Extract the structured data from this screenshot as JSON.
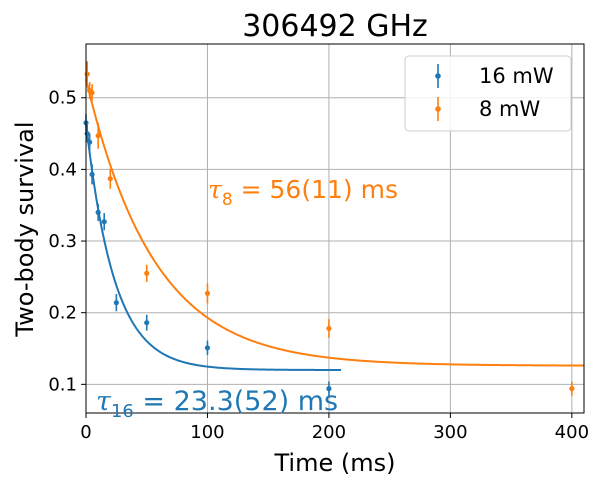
{
  "chart_data": {
    "type": "scatter",
    "title": "306492 GHz",
    "xlabel": "Time (ms)",
    "ylabel": "Two-body survival",
    "xlim": [
      0,
      410
    ],
    "ylim": [
      0.06,
      0.575
    ],
    "xticks": [
      0,
      100,
      200,
      300,
      400
    ],
    "yticks": [
      0.1,
      0.2,
      0.3,
      0.4,
      0.5
    ],
    "xtick_labels": [
      "0",
      "100",
      "200",
      "300",
      "400"
    ],
    "ytick_labels": [
      "0.1",
      "0.2",
      "0.3",
      "0.4",
      "0.5"
    ],
    "grid": true,
    "legend_position": "top-right",
    "series": [
      {
        "name": "16 mW",
        "color": "#1f77b4",
        "x": [
          0,
          1,
          3,
          5,
          10,
          15,
          25,
          50,
          100,
          200
        ],
        "y": [
          0.465,
          0.45,
          0.438,
          0.393,
          0.34,
          0.327,
          0.214,
          0.186,
          0.151,
          0.094
        ],
        "yerr": [
          0.012,
          0.012,
          0.012,
          0.014,
          0.012,
          0.012,
          0.012,
          0.011,
          0.01,
          0.01
        ],
        "fit": {
          "model": "exponential",
          "amplitude": 0.345,
          "tau": 23.3,
          "offset": 0.12,
          "x_end": 210
        },
        "annotation": "τ16 = 23.3(52) ms"
      },
      {
        "name": "8 mW",
        "color": "#ff7f0e",
        "x": [
          1,
          3,
          5,
          10,
          20,
          50,
          100,
          200,
          400
        ],
        "y": [
          0.533,
          0.51,
          0.507,
          0.447,
          0.387,
          0.255,
          0.227,
          0.178,
          0.094
        ],
        "yerr": [
          0.018,
          0.012,
          0.012,
          0.018,
          0.014,
          0.012,
          0.014,
          0.013,
          0.01
        ],
        "fit": {
          "model": "exponential",
          "amplitude": 0.4,
          "tau": 56,
          "offset": 0.126,
          "x_end": 410
        },
        "annotation": "τ8 = 56(11) ms"
      }
    ]
  }
}
